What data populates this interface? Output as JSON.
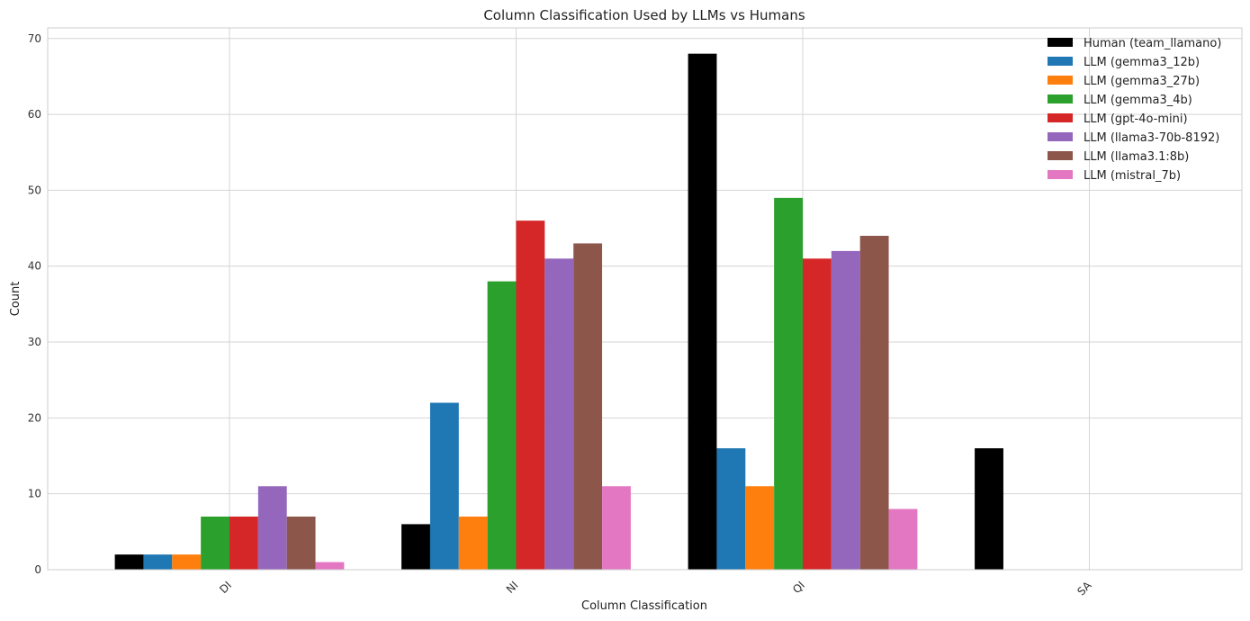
{
  "chart_data": {
    "type": "bar",
    "title": "Column Classification Used by LLMs vs Humans",
    "xlabel": "Column Classification",
    "ylabel": "Count",
    "categories": [
      "DI",
      "NI",
      "QI",
      "SA"
    ],
    "ylim": [
      0,
      71.4
    ],
    "yticks": [
      0,
      10,
      20,
      30,
      40,
      50,
      60,
      70
    ],
    "grid": true,
    "legend_position": "top-right",
    "series": [
      {
        "name": "Human (team_llamano)",
        "color": "#000000",
        "values": [
          2,
          6,
          68,
          16
        ]
      },
      {
        "name": "LLM (gemma3_12b)",
        "color": "#1f77b4",
        "values": [
          2,
          22,
          16,
          0
        ]
      },
      {
        "name": "LLM (gemma3_27b)",
        "color": "#ff7f0e",
        "values": [
          2,
          7,
          11,
          0
        ]
      },
      {
        "name": "LLM (gemma3_4b)",
        "color": "#2ca02c",
        "values": [
          7,
          38,
          49,
          0
        ]
      },
      {
        "name": "LLM (gpt-4o-mini)",
        "color": "#d62728",
        "values": [
          7,
          46,
          41,
          0
        ]
      },
      {
        "name": "LLM (llama3-70b-8192)",
        "color": "#9467bd",
        "values": [
          11,
          41,
          42,
          0
        ]
      },
      {
        "name": "LLM (llama3.1:8b)",
        "color": "#8c564b",
        "values": [
          7,
          43,
          44,
          0
        ]
      },
      {
        "name": "LLM (mistral_7b)",
        "color": "#e377c2",
        "values": [
          1,
          11,
          8,
          0
        ]
      }
    ]
  }
}
